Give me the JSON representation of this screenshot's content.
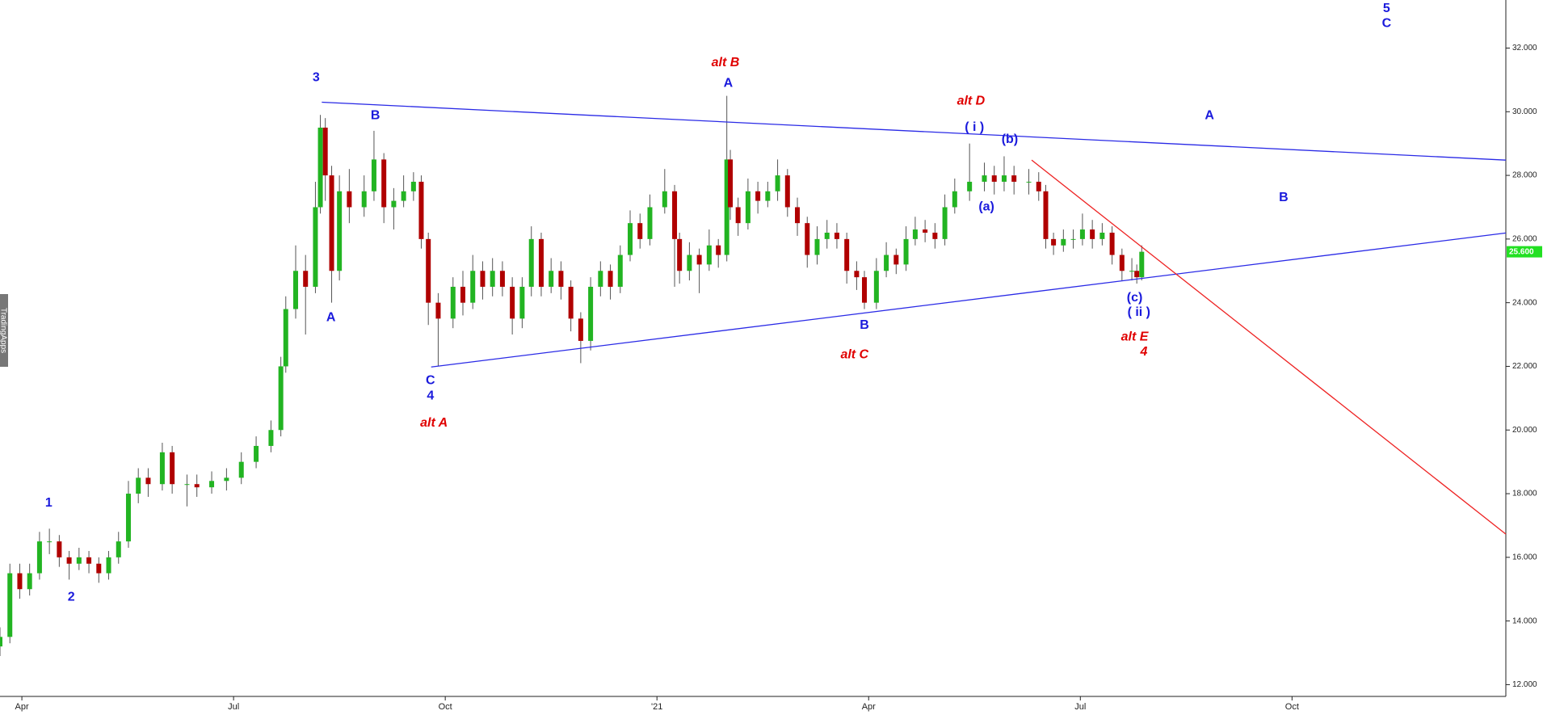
{
  "chart_data": {
    "type": "candlestick",
    "watermark": "TradingApps",
    "up_color": "#22b422",
    "down_color": "#b00000",
    "wick_color": "#555555",
    "xlim": [
      2.69,
      24.03
    ],
    "xticks": [
      {
        "value": 3,
        "label": "Apr"
      },
      {
        "value": 6,
        "label": "Jul"
      },
      {
        "value": 9,
        "label": "Oct"
      },
      {
        "value": 12,
        "label": "'21"
      },
      {
        "value": 15,
        "label": "Apr"
      },
      {
        "value": 18,
        "label": "Jul"
      },
      {
        "value": 21,
        "label": "Oct"
      }
    ],
    "ylim": [
      11.63,
      33.51
    ],
    "yticks": [
      {
        "value": 12,
        "label": "12.000"
      },
      {
        "value": 14,
        "label": "14.000"
      },
      {
        "value": 16,
        "label": "16.000"
      },
      {
        "value": 18,
        "label": "18.000"
      },
      {
        "value": 20,
        "label": "20.000"
      },
      {
        "value": 22,
        "label": "22.000"
      },
      {
        "value": 24,
        "label": "24.000"
      },
      {
        "value": 26,
        "label": "26.000"
      },
      {
        "value": 28,
        "label": "28.000"
      },
      {
        "value": 30,
        "label": "30.000"
      },
      {
        "value": 32,
        "label": "32.000"
      }
    ],
    "last_price": {
      "value": 25.6,
      "label": "25.600",
      "color": "#22e022"
    },
    "x": [
      2.69,
      2.83,
      2.97,
      3.11,
      3.25,
      3.39,
      3.53,
      3.67,
      3.81,
      3.95,
      4.09,
      4.23,
      4.37,
      4.51,
      4.65,
      4.79,
      4.99,
      5.13,
      5.34,
      5.48,
      5.69,
      5.9,
      6.11,
      6.32,
      6.53,
      6.67,
      6.74,
      6.88,
      7.02,
      7.16,
      7.23,
      7.3,
      7.39,
      7.5,
      7.64,
      7.85,
      7.99,
      8.13,
      8.27,
      8.41,
      8.55,
      8.66,
      8.76,
      8.9,
      9.11,
      9.25,
      9.39,
      9.53,
      9.67,
      9.81,
      9.95,
      10.09,
      10.22,
      10.36,
      10.5,
      10.64,
      10.78,
      10.92,
      11.06,
      11.2,
      11.34,
      11.48,
      11.62,
      11.76,
      11.9,
      12.11,
      12.25,
      12.32,
      12.46,
      12.6,
      12.74,
      12.87,
      12.99,
      13.04,
      13.15,
      13.29,
      13.43,
      13.57,
      13.71,
      13.85,
      13.99,
      14.13,
      14.27,
      14.41,
      14.55,
      14.69,
      14.83,
      14.94,
      15.11,
      15.25,
      15.39,
      15.53,
      15.66,
      15.8,
      15.94,
      16.08,
      16.22,
      16.43,
      16.64,
      16.78,
      16.92,
      17.06,
      17.27,
      17.41,
      17.51,
      17.62,
      17.76,
      17.9,
      18.03,
      18.17,
      18.31,
      18.45,
      18.59,
      18.73,
      18.8,
      18.87
    ],
    "ohlc": [
      [
        13.2,
        13.8,
        12.9,
        13.5
      ],
      [
        13.5,
        15.8,
        13.3,
        15.5
      ],
      [
        15.5,
        15.8,
        14.7,
        15
      ],
      [
        15,
        15.8,
        14.8,
        15.5
      ],
      [
        15.5,
        16.8,
        15.3,
        16.5
      ],
      [
        16.5,
        16.9,
        16.1,
        16.5
      ],
      [
        16.5,
        16.7,
        15.7,
        16
      ],
      [
        16,
        16.2,
        15.3,
        15.8
      ],
      [
        15.8,
        16.3,
        15.6,
        16
      ],
      [
        16,
        16.2,
        15.5,
        15.8
      ],
      [
        15.8,
        16,
        15.2,
        15.5
      ],
      [
        15.5,
        16.2,
        15.3,
        16
      ],
      [
        16,
        16.8,
        15.8,
        16.5
      ],
      [
        16.5,
        18.4,
        16.3,
        18
      ],
      [
        18,
        18.8,
        17.7,
        18.5
      ],
      [
        18.5,
        18.8,
        17.9,
        18.3
      ],
      [
        18.3,
        19.6,
        18.1,
        19.3
      ],
      [
        19.3,
        19.5,
        18,
        18.3
      ],
      [
        18.3,
        18.6,
        17.6,
        18.3
      ],
      [
        18.3,
        18.6,
        17.9,
        18.2
      ],
      [
        18.2,
        18.7,
        18,
        18.4
      ],
      [
        18.4,
        18.8,
        18.1,
        18.5
      ],
      [
        18.5,
        19.3,
        18.3,
        19
      ],
      [
        19,
        19.8,
        18.8,
        19.5
      ],
      [
        19.5,
        20.3,
        19.3,
        20
      ],
      [
        20,
        22.3,
        19.8,
        22
      ],
      [
        22,
        24.2,
        21.8,
        23.8
      ],
      [
        23.8,
        25.8,
        23.5,
        25
      ],
      [
        25,
        25.5,
        23,
        24.5
      ],
      [
        24.5,
        27.8,
        24.3,
        27
      ],
      [
        27,
        29.9,
        26.8,
        29.5
      ],
      [
        29.5,
        29.8,
        27.2,
        28
      ],
      [
        28,
        28.3,
        24,
        25
      ],
      [
        25,
        28,
        24.7,
        27.5
      ],
      [
        27.5,
        28.2,
        26.5,
        27
      ],
      [
        27,
        28,
        26.7,
        27.5
      ],
      [
        27.5,
        29.4,
        27.2,
        28.5
      ],
      [
        28.5,
        28.7,
        26.5,
        27
      ],
      [
        27,
        27.6,
        26.3,
        27.2
      ],
      [
        27.2,
        28,
        27,
        27.5
      ],
      [
        27.5,
        28.1,
        27.2,
        27.8
      ],
      [
        27.8,
        28,
        25.7,
        26
      ],
      [
        26,
        26.2,
        23.3,
        24
      ],
      [
        24,
        24.3,
        22,
        23.5
      ],
      [
        23.5,
        24.8,
        23.2,
        24.5
      ],
      [
        24.5,
        25,
        23.6,
        24
      ],
      [
        24,
        25.5,
        23.8,
        25
      ],
      [
        25,
        25.3,
        24.1,
        24.5
      ],
      [
        24.5,
        25.4,
        24.2,
        25
      ],
      [
        25,
        25.3,
        24.2,
        24.5
      ],
      [
        24.5,
        24.8,
        23,
        23.5
      ],
      [
        23.5,
        24.8,
        23.2,
        24.5
      ],
      [
        24.5,
        26.4,
        24.2,
        26
      ],
      [
        26,
        26.2,
        24.2,
        24.5
      ],
      [
        24.5,
        25.4,
        24.3,
        25
      ],
      [
        25,
        25.3,
        24.1,
        24.5
      ],
      [
        24.5,
        24.7,
        23.1,
        23.5
      ],
      [
        23.5,
        23.7,
        22.1,
        22.8
      ],
      [
        22.8,
        24.8,
        22.5,
        24.5
      ],
      [
        24.5,
        25.3,
        24.2,
        25
      ],
      [
        25,
        25.2,
        24.1,
        24.5
      ],
      [
        24.5,
        25.8,
        24.3,
        25.5
      ],
      [
        25.5,
        26.9,
        25.3,
        26.5
      ],
      [
        26.5,
        26.8,
        25.7,
        26
      ],
      [
        26,
        27.4,
        25.8,
        27
      ],
      [
        27,
        28.2,
        26.8,
        27.5
      ],
      [
        27.5,
        27.7,
        24.5,
        26
      ],
      [
        26,
        26.2,
        24.6,
        25
      ],
      [
        25,
        25.9,
        24.7,
        25.5
      ],
      [
        25.5,
        25.7,
        24.3,
        25.2
      ],
      [
        25.2,
        26.3,
        25,
        25.8
      ],
      [
        25.8,
        26,
        25.1,
        25.5
      ],
      [
        25.5,
        30.5,
        25.3,
        28.5
      ],
      [
        28.5,
        28.8,
        26.6,
        27
      ],
      [
        27,
        27.3,
        26.1,
        26.5
      ],
      [
        26.5,
        27.9,
        26.3,
        27.5
      ],
      [
        27.5,
        27.8,
        26.8,
        27.2
      ],
      [
        27.2,
        27.8,
        27,
        27.5
      ],
      [
        27.5,
        28.5,
        27.2,
        28
      ],
      [
        28,
        28.2,
        26.7,
        27
      ],
      [
        27,
        27.3,
        26.1,
        26.5
      ],
      [
        26.5,
        26.7,
        25.1,
        25.5
      ],
      [
        25.5,
        26.4,
        25.2,
        26
      ],
      [
        26,
        26.6,
        25.7,
        26.2
      ],
      [
        26.2,
        26.5,
        25.7,
        26
      ],
      [
        26,
        26.2,
        24.6,
        25
      ],
      [
        25,
        25.3,
        24.4,
        24.8
      ],
      [
        24.8,
        25,
        23.8,
        24
      ],
      [
        24,
        25.4,
        23.8,
        25
      ],
      [
        25,
        25.9,
        24.8,
        25.5
      ],
      [
        25.5,
        25.7,
        24.9,
        25.2
      ],
      [
        25.2,
        26.4,
        25,
        26
      ],
      [
        26,
        26.7,
        25.8,
        26.3
      ],
      [
        26.3,
        26.6,
        25.9,
        26.2
      ],
      [
        26.2,
        26.5,
        25.7,
        26
      ],
      [
        26,
        27.4,
        25.8,
        27
      ],
      [
        27,
        27.9,
        26.8,
        27.5
      ],
      [
        27.5,
        29,
        27.2,
        27.8
      ],
      [
        27.8,
        28.4,
        27.5,
        28
      ],
      [
        28,
        28.3,
        27.4,
        27.8
      ],
      [
        27.8,
        28.6,
        27.5,
        28
      ],
      [
        28,
        28.3,
        27.4,
        27.8
      ],
      [
        27.8,
        28.2,
        27.4,
        27.8
      ],
      [
        27.8,
        28.1,
        27.2,
        27.5
      ],
      [
        27.5,
        27.7,
        25.7,
        26
      ],
      [
        26,
        26.2,
        25.5,
        25.8
      ],
      [
        25.8,
        26.3,
        25.6,
        26
      ],
      [
        26,
        26.3,
        25.7,
        26
      ],
      [
        26,
        26.8,
        25.8,
        26.3
      ],
      [
        26.3,
        26.6,
        25.7,
        26
      ],
      [
        26,
        26.5,
        25.8,
        26.2
      ],
      [
        26.2,
        26.4,
        25.2,
        25.5
      ],
      [
        25.5,
        25.7,
        24.7,
        25
      ],
      [
        25,
        25.4,
        24.7,
        25
      ],
      [
        25,
        25.2,
        24.6,
        24.8
      ],
      [
        24.8,
        25.8,
        24.7,
        25.6
      ]
    ],
    "lines": [
      {
        "color": "#2a2ae6",
        "x": [
          7.25,
          24.03
        ],
        "y": [
          30.3,
          28.48
        ]
      },
      {
        "color": "#2a2ae6",
        "x": [
          8.8,
          24.03
        ],
        "y": [
          21.98,
          26.19
        ]
      },
      {
        "color": "#ee2222",
        "x": [
          17.31,
          24.03
        ],
        "y": [
          28.48,
          16.73
        ]
      }
    ],
    "annotations": [
      {
        "text": "3",
        "x": 7.17,
        "y": 31.07,
        "color": "#1a1adc"
      },
      {
        "text": "B",
        "x": 8.01,
        "y": 29.87,
        "color": "#1a1adc"
      },
      {
        "text": "A",
        "x": 7.38,
        "y": 23.53,
        "color": "#1a1adc"
      },
      {
        "text": "C",
        "x": 8.79,
        "y": 21.55,
        "color": "#1a1adc"
      },
      {
        "text": "4",
        "x": 8.79,
        "y": 21.06,
        "color": "#1a1adc"
      },
      {
        "text": "alt A",
        "x": 8.84,
        "y": 20.22,
        "color": "#e00000",
        "italic": true
      },
      {
        "text": "1",
        "x": 3.38,
        "y": 17.7,
        "color": "#1a1adc"
      },
      {
        "text": "2",
        "x": 3.7,
        "y": 14.75,
        "color": "#1a1adc"
      },
      {
        "text": "alt B",
        "x": 12.97,
        "y": 31.54,
        "color": "#e00000",
        "italic": true
      },
      {
        "text": "A",
        "x": 13.01,
        "y": 30.89,
        "color": "#1a1adc"
      },
      {
        "text": "alt D",
        "x": 16.45,
        "y": 30.33,
        "color": "#e00000",
        "italic": true
      },
      {
        "text": "( i )",
        "x": 16.5,
        "y": 29.5,
        "color": "#1a1adc"
      },
      {
        "text": "(b)",
        "x": 17.0,
        "y": 29.13,
        "color": "#1a1adc"
      },
      {
        "text": "(a)",
        "x": 16.67,
        "y": 27.0,
        "color": "#1a1adc"
      },
      {
        "text": "A",
        "x": 19.83,
        "y": 29.87,
        "color": "#1a1adc"
      },
      {
        "text": "B",
        "x": 20.88,
        "y": 27.3,
        "color": "#1a1adc"
      },
      {
        "text": "B",
        "x": 14.94,
        "y": 23.28,
        "color": "#1a1adc"
      },
      {
        "text": "alt C",
        "x": 14.8,
        "y": 22.36,
        "color": "#e00000",
        "italic": true
      },
      {
        "text": "(c)",
        "x": 18.77,
        "y": 24.15,
        "color": "#1a1adc"
      },
      {
        "text": "( ii )",
        "x": 18.83,
        "y": 23.69,
        "color": "#1a1adc"
      },
      {
        "text": "alt E",
        "x": 18.77,
        "y": 22.92,
        "color": "#e00000",
        "italic": true
      },
      {
        "text": "4",
        "x": 18.9,
        "y": 22.45,
        "color": "#e00000",
        "italic": true
      },
      {
        "text": "5",
        "x": 22.34,
        "y": 33.24,
        "color": "#1a1adc"
      },
      {
        "text": "C",
        "x": 22.34,
        "y": 32.77,
        "color": "#1a1adc"
      }
    ]
  }
}
